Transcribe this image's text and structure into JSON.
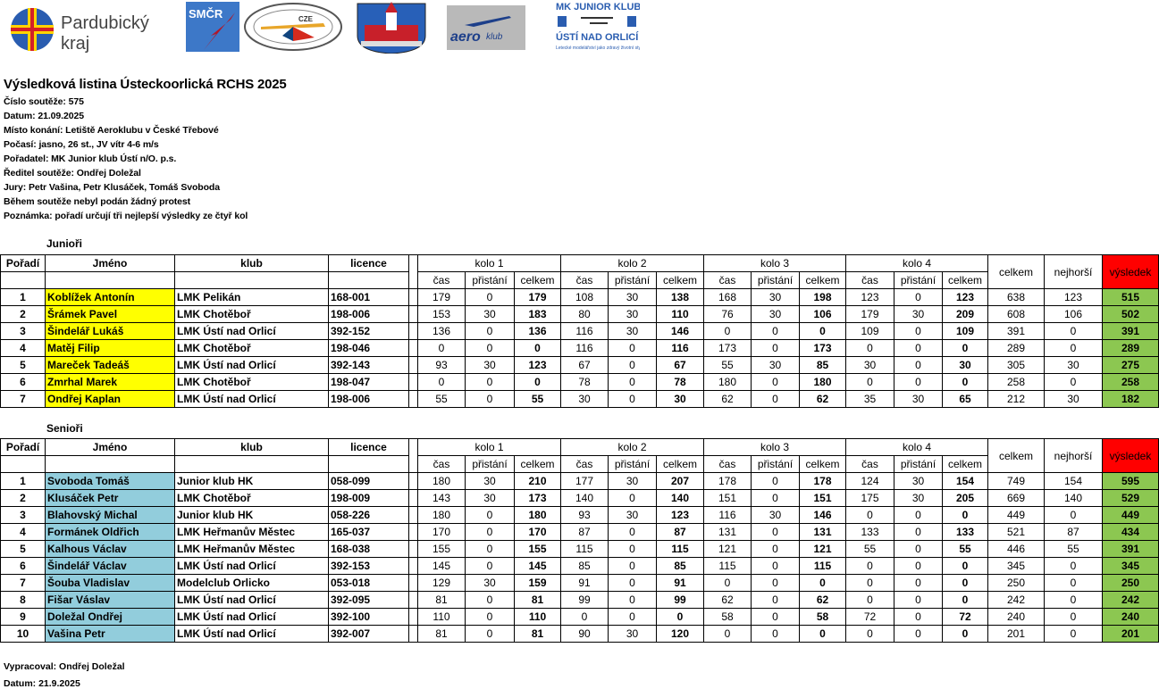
{
  "logos": {
    "pardubicky": "Pardubický kraj",
    "smcr": "SMČR",
    "cze": "CZE",
    "aeroklub": "aeroklub",
    "mk_junior": "MK JUNIOR KLUB ÚSTÍ NAD ORLICÍ"
  },
  "header": {
    "title": "Výsledková listina Ústeckoorlická RCHS 2025",
    "lines": [
      "Číslo soutěže: 575",
      "Datum: 21.09.2025",
      "Místo konání: Letiště Aeroklubu v České Třebové",
      "Počasí: jasno, 26 st., JV vítr 4-6 m/s",
      "Pořadatel: MK Junior klub Ústí n/O. p.s.",
      "Ředitel soutěže: Ondřej Doležal",
      "Jury: Petr Vašina, Petr Klusáček, Tomáš Svoboda",
      "Během soutěže nebyl podán žádný protest",
      "Poznámka: pořadí určují tři nejlepší výsledky ze čtyř kol"
    ]
  },
  "columns": {
    "poradi": "Pořadí",
    "jmeno": "Jméno",
    "klub": "klub",
    "licence": "licence",
    "rounds": [
      "kolo 1",
      "kolo 2",
      "kolo 3",
      "kolo 4"
    ],
    "sub": [
      "čas",
      "přistání",
      "celkem"
    ],
    "celkem": "celkem",
    "nejhorsi": "nejhorší",
    "vysledek": "výsledek"
  },
  "colors": {
    "junior_name": "#ffff00",
    "senior_name": "#92cddc",
    "vysledek_header": "#ff0000",
    "vysledek_cell": "#8cc751"
  },
  "sections": [
    {
      "label": "Junioři",
      "rows": [
        [
          "1",
          "Koblížek Antonín",
          "LMK Pelikán",
          "168-001",
          "179",
          "0",
          "179",
          "108",
          "30",
          "138",
          "168",
          "30",
          "198",
          "123",
          "0",
          "123",
          "638",
          "123",
          "515"
        ],
        [
          "2",
          "Šrámek Pavel",
          "LMK Chotěboř",
          "198-006",
          "153",
          "30",
          "183",
          "80",
          "30",
          "110",
          "76",
          "30",
          "106",
          "179",
          "30",
          "209",
          "608",
          "106",
          "502"
        ],
        [
          "3",
          "Šindelář Lukáš",
          "LMK Ústí nad Orlicí",
          "392-152",
          "136",
          "0",
          "136",
          "116",
          "30",
          "146",
          "0",
          "0",
          "0",
          "109",
          "0",
          "109",
          "391",
          "0",
          "391"
        ],
        [
          "4",
          "Matěj Filip",
          "LMK Chotěboř",
          "198-046",
          "0",
          "0",
          "0",
          "116",
          "0",
          "116",
          "173",
          "0",
          "173",
          "0",
          "0",
          "0",
          "289",
          "0",
          "289"
        ],
        [
          "5",
          "Mareček Tadeáš",
          "LMK Ústí nad Orlicí",
          "392-143",
          "93",
          "30",
          "123",
          "67",
          "0",
          "67",
          "55",
          "30",
          "85",
          "30",
          "0",
          "30",
          "305",
          "30",
          "275"
        ],
        [
          "6",
          "Zmrhal Marek",
          "LMK Chotěboř",
          "198-047",
          "0",
          "0",
          "0",
          "78",
          "0",
          "78",
          "180",
          "0",
          "180",
          "0",
          "0",
          "0",
          "258",
          "0",
          "258"
        ],
        [
          "7",
          "Ondřej Kaplan",
          "LMK Ústí nad Orlicí",
          "198-006",
          "55",
          "0",
          "55",
          "30",
          "0",
          "30",
          "62",
          "0",
          "62",
          "35",
          "30",
          "65",
          "212",
          "30",
          "182"
        ]
      ]
    },
    {
      "label": "Senioři",
      "rows": [
        [
          "1",
          "Svoboda Tomáš",
          "Junior klub HK",
          "058-099",
          "180",
          "30",
          "210",
          "177",
          "30",
          "207",
          "178",
          "0",
          "178",
          "124",
          "30",
          "154",
          "749",
          "154",
          "595"
        ],
        [
          "2",
          "Klusáček Petr",
          "LMK Chotěboř",
          "198-009",
          "143",
          "30",
          "173",
          "140",
          "0",
          "140",
          "151",
          "0",
          "151",
          "175",
          "30",
          "205",
          "669",
          "140",
          "529"
        ],
        [
          "3",
          "Blahovský Michal",
          "Junior klub HK",
          "058-226",
          "180",
          "0",
          "180",
          "93",
          "30",
          "123",
          "116",
          "30",
          "146",
          "0",
          "0",
          "0",
          "449",
          "0",
          "449"
        ],
        [
          "4",
          "Formánek Oldřich",
          "LMK Heřmanův Městec",
          "165-037",
          "170",
          "0",
          "170",
          "87",
          "0",
          "87",
          "131",
          "0",
          "131",
          "133",
          "0",
          "133",
          "521",
          "87",
          "434"
        ],
        [
          "5",
          "Kalhous Václav",
          "LMK Heřmanův Městec",
          "168-038",
          "155",
          "0",
          "155",
          "115",
          "0",
          "115",
          "121",
          "0",
          "121",
          "55",
          "0",
          "55",
          "446",
          "55",
          "391"
        ],
        [
          "6",
          "Šindelář Václav",
          "LMK Ústí nad Orlicí",
          "392-153",
          "145",
          "0",
          "145",
          "85",
          "0",
          "85",
          "115",
          "0",
          "115",
          "0",
          "0",
          "0",
          "345",
          "0",
          "345"
        ],
        [
          "7",
          "Šouba Vladislav",
          "Modelclub Orlicko",
          "053-018",
          "129",
          "30",
          "159",
          "91",
          "0",
          "91",
          "0",
          "0",
          "0",
          "0",
          "0",
          "0",
          "250",
          "0",
          "250"
        ],
        [
          "8",
          "Fišar Váslav",
          "LMK Ústí nad Orlicí",
          "392-095",
          "81",
          "0",
          "81",
          "99",
          "0",
          "99",
          "62",
          "0",
          "62",
          "0",
          "0",
          "0",
          "242",
          "0",
          "242"
        ],
        [
          "9",
          "Doležal Ondřej",
          "LMK Ústí nad Orlicí",
          "392-100",
          "110",
          "0",
          "110",
          "0",
          "0",
          "0",
          "58",
          "0",
          "58",
          "72",
          "0",
          "72",
          "240",
          "0",
          "240"
        ],
        [
          "10",
          "Vašina Petr",
          "LMK Ústí nad Orlicí",
          "392-007",
          "81",
          "0",
          "81",
          "90",
          "30",
          "120",
          "0",
          "0",
          "0",
          "0",
          "0",
          "0",
          "201",
          "0",
          "201"
        ]
      ]
    }
  ],
  "footer": {
    "prepared_by": "Vypracoval: Ondřej Doležal",
    "date": "Datum: 21.9.2025"
  }
}
